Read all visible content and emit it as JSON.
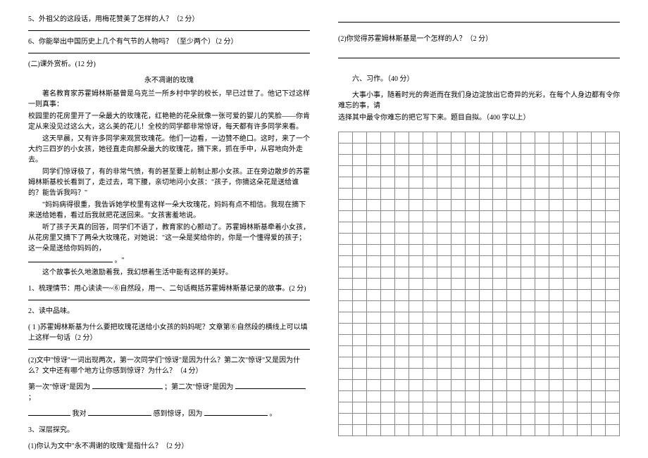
{
  "left": {
    "q5": "5、外祖父的这段话，用梅花赞美了怎样的人？（2 分）",
    "q6": "6、你能举出中国历史上几个有气节的人物吗？（至少两个）（2 分）",
    "section2": "(二)课外赏析。(12 分)",
    "storyTitle": "永不凋谢的玫瑰",
    "p1": "著名教育家苏霍姆林斯基曾是乌克兰一所乡村中学的校长，早已过世了。他记下过这样一则真事：",
    "p2": "校园里的花房里开了一朵最大的玫瑰花，红艳艳的花朵就像一张可爱的婴儿的笑脸——你肯定从来没见过这么大，这么美的花儿！全校的同学都非常惊讶，每天都有许多同学来看。",
    "p3": "这天早晨，又有许多同学来观赏玫瑰花。他们一边看，一边赞不绝口。这时，来了一个大约三四岁的小女孩，她径直走向那朵最大的玫瑰花，摘下来，抓在手中，从容地向外走去。",
    "p4": "同学们惊讶极了，有的非常气愤，有的甚至要上前制止那小女孩。正在旁边散步的苏霍姆林斯基校长看到了，走过去，弯下腰，亲切地问小女孩：\"孩子，你摘这朵花是送给谁的？能告诉我吗？\"",
    "p5": "\"妈妈病得很重，我告诉她学校里有这样一朵大玫瑰花，妈妈有点不相信。我现在摘下来送给她看，看过后我就把花送回来。\"女孩害羞地说。",
    "p6": "听了孩子天真的回答，同学们不语了，教育家的心颤动了。苏霍姆林斯基牵着小女孩，从花房里又摘下了两朵大玫瑰花，对她说：\"这一朵是奖给你的，你是一个懂得爱的孩子；这一朵是送给你妈妈的，",
    "p6b": "。\"",
    "p7": "这个故事长久地激励着我，我幻想着生活中能有这样的美好。",
    "q1": "1、梳理情节：用心读读一~⑥自然段，用一、二句话概括苏霍姆林斯基记录的故事。(2 分)",
    "q2": "2、读中品味。",
    "q2_1": "( 1 )苏霍姆林斯基为什么要把玫瑰花送给小女孩的妈妈呢？文章第⑥自然段的横线上可以填上这样一句话（2 分）",
    "q2_2": "(2)文中\"惊讶\"一词出现两次，第一次同学们\"惊讶\"是因为什么？第二次\"惊讶\"又是因为什么？文中还有哪个地方让你感到惊讶？为什么？（4 分）",
    "q2_2a_pre": "第一次\"惊讶\"是因为",
    "q2_2a_mid": "；第二次\"惊讶\"是因为",
    "q2_2a_end": "；",
    "q2_2b_pre": "我对",
    "q2_2b_mid": "感到惊讶，因为",
    "q2_2b_end": "。",
    "q3": "3、深层探究。",
    "q3_1": "(1)你认为文中\"永不凋谢的玫瑰\"是指什么？（2 分）"
  },
  "right": {
    "q3_2": "(2)你觉得苏霍姆林斯基是一个怎样的人？（2 分）",
    "section6": "六、习作。（40 分）",
    "essay1": "大事小事，随着时光的奔逝而在我们身边淀放出它奇异的光彩，在每个人身边都有令你难忘的事，请",
    "essay2": "选择其中最令你难忘的把它写下来。题目自拟。（400 字以上）"
  },
  "style": {
    "gridRows": 27,
    "gridCols": 20,
    "gridBorderColor": "#888888",
    "cellHeight": 16,
    "background": "#ffffff",
    "textColor": "#000000",
    "fontSize": 10
  }
}
